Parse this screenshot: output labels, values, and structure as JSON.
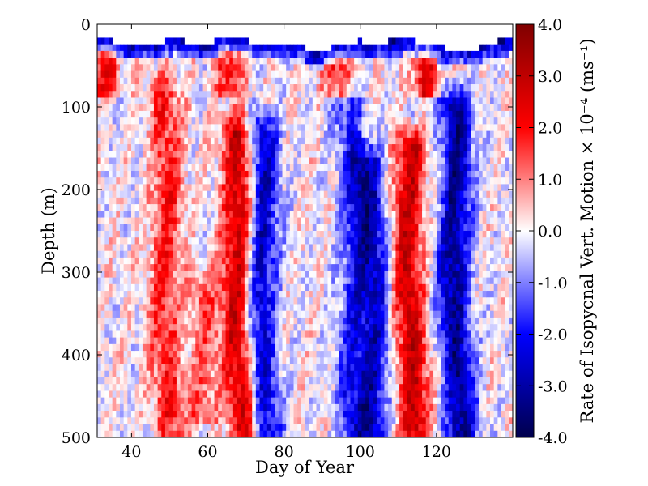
{
  "chart_data": {
    "type": "heatmap",
    "title": "",
    "xlabel": "Day of Year",
    "ylabel": "Depth (m)",
    "xlim": [
      31,
      140
    ],
    "ylim": [
      500,
      0
    ],
    "x_tick_labels": [
      "40",
      "60",
      "80",
      "100",
      "120"
    ],
    "x_tick_values": [
      40,
      60,
      80,
      100,
      120
    ],
    "y_tick_labels": [
      "0",
      "100",
      "200",
      "300",
      "400",
      "500"
    ],
    "y_tick_values": [
      0,
      100,
      200,
      300,
      400,
      500
    ],
    "colorbar": {
      "label": "Rate of Isopycnal Vert. Motion × 10⁻⁴ (ms⁻¹)",
      "range": [
        -4.0,
        4.0
      ],
      "tick_values": [
        4.0,
        3.0,
        2.0,
        1.0,
        0.0,
        -1.0,
        -2.0,
        -3.0,
        -4.0
      ],
      "tick_labels": [
        "4.0",
        "3.0",
        "2.0",
        "1.0",
        "0.0",
        "-1.0",
        "-2.0",
        "-3.0",
        "-4.0"
      ],
      "colormap": "seismic",
      "colors": {
        "low": "#00004c",
        "mid_low": "#0000ff",
        "zero": "#ffffff",
        "mid_high": "#ff0000",
        "high": "#7f0000"
      }
    },
    "surface_mixed_layer_depth": [
      [
        31,
        15
      ],
      [
        35,
        20
      ],
      [
        40,
        26
      ],
      [
        45,
        23
      ],
      [
        48,
        22
      ],
      [
        50,
        19
      ],
      [
        52,
        17
      ],
      [
        55,
        22
      ],
      [
        58,
        26
      ],
      [
        62,
        20
      ],
      [
        66,
        15
      ],
      [
        68,
        14
      ],
      [
        70,
        18
      ],
      [
        73,
        24
      ],
      [
        76,
        22
      ],
      [
        80,
        22
      ],
      [
        84,
        26
      ],
      [
        88,
        34
      ],
      [
        90,
        36
      ],
      [
        92,
        30
      ],
      [
        96,
        22
      ],
      [
        100,
        20
      ],
      [
        104,
        22
      ],
      [
        108,
        20
      ],
      [
        112,
        18
      ],
      [
        116,
        22
      ],
      [
        120,
        26
      ],
      [
        124,
        30
      ],
      [
        128,
        31
      ],
      [
        132,
        27
      ],
      [
        136,
        20
      ],
      [
        140,
        18
      ]
    ],
    "features": [
      {
        "kind": "red",
        "day": 49,
        "depth_top": 60,
        "depth_bottom": 500,
        "peak": 1.8
      },
      {
        "kind": "red",
        "day": 68,
        "depth_top": 110,
        "depth_bottom": 500,
        "peak": 3.0
      },
      {
        "kind": "blue",
        "day": 74,
        "depth_top": 110,
        "depth_bottom": 500,
        "peak": -2.8
      },
      {
        "kind": "blue",
        "day": 98,
        "depth_top": 80,
        "depth_bottom": 500,
        "peak": -1.8
      },
      {
        "kind": "blue",
        "day": 103,
        "depth_top": 150,
        "depth_bottom": 500,
        "peak": -2.4
      },
      {
        "kind": "red",
        "day": 113,
        "depth_top": 130,
        "depth_bottom": 500,
        "peak": 2.8
      },
      {
        "kind": "blue",
        "day": 125,
        "depth_top": 80,
        "depth_bottom": 500,
        "peak": -3.2
      },
      {
        "kind": "red",
        "day": 58,
        "depth_top": 300,
        "depth_bottom": 460,
        "peak": 1.2
      },
      {
        "kind": "red",
        "day": 33,
        "depth_top": 30,
        "depth_bottom": 70,
        "peak": 2.2
      },
      {
        "kind": "red",
        "day": 67,
        "depth_top": 30,
        "depth_bottom": 70,
        "peak": 2.0
      },
      {
        "kind": "red",
        "day": 94,
        "depth_top": 35,
        "depth_bottom": 70,
        "peak": 2.0
      },
      {
        "kind": "red",
        "day": 118,
        "depth_top": 30,
        "depth_bottom": 70,
        "peak": 2.4
      }
    ]
  }
}
